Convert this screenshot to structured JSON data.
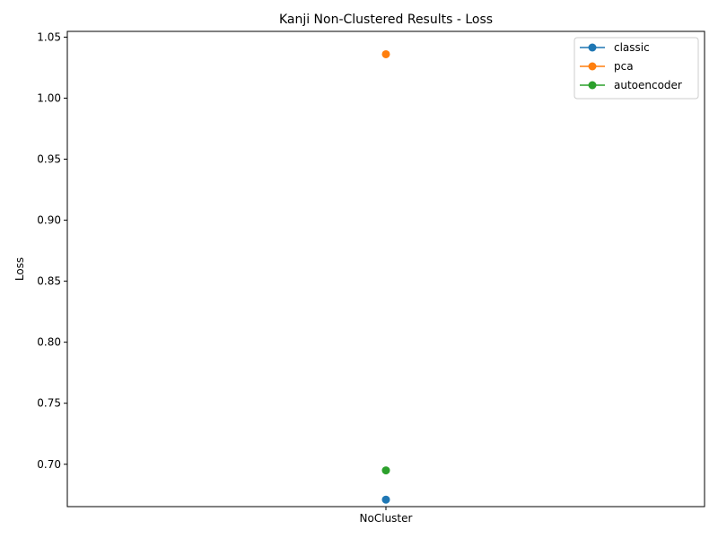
{
  "chart_data": {
    "type": "line",
    "title": "Kanji Non-Clustered Results - Loss",
    "xlabel": "",
    "ylabel": "Loss",
    "categories": [
      "NoCluster"
    ],
    "ylim": [
      0.6653,
      1.0547
    ],
    "yticks": [
      "0.70",
      "0.75",
      "0.80",
      "0.85",
      "0.90",
      "0.95",
      "1.00",
      "1.05"
    ],
    "grid": false,
    "legend_position": "top-right",
    "series": [
      {
        "name": "classic",
        "values": [
          0.671
        ],
        "color": "#1f77b4",
        "marker": "circle"
      },
      {
        "name": "pca",
        "values": [
          1.036
        ],
        "color": "#ff7f0e",
        "marker": "circle"
      },
      {
        "name": "autoencoder",
        "values": [
          0.695
        ],
        "color": "#2ca02c",
        "marker": "circle"
      }
    ]
  }
}
